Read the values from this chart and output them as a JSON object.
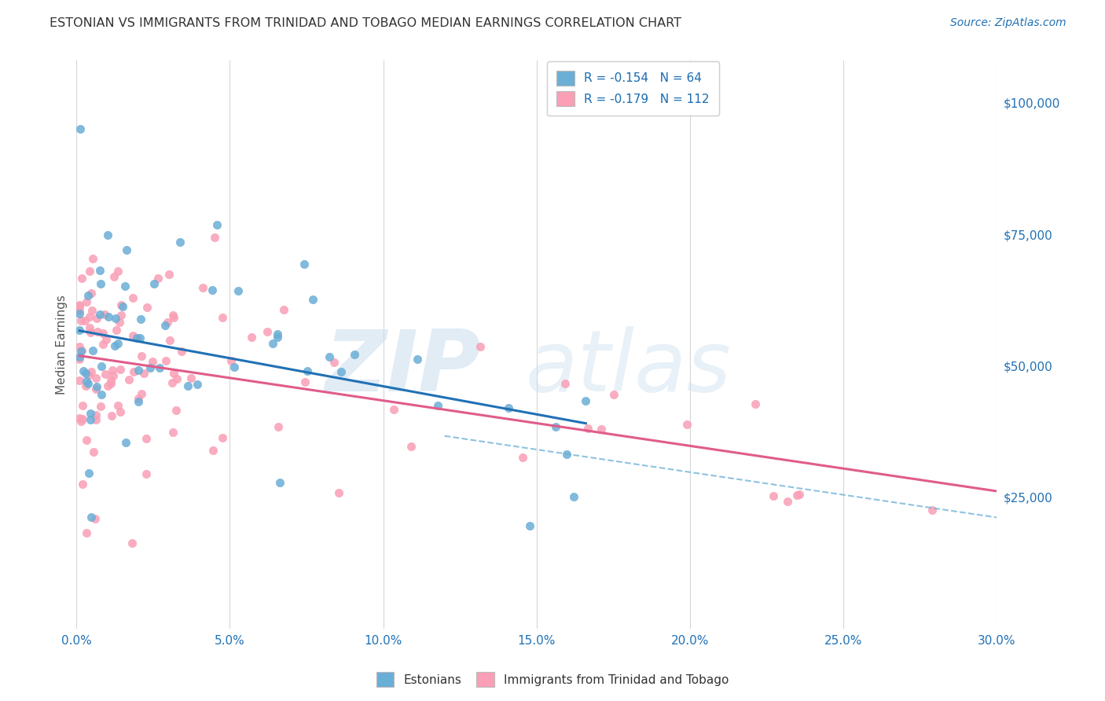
{
  "title": "ESTONIAN VS IMMIGRANTS FROM TRINIDAD AND TOBAGO MEDIAN EARNINGS CORRELATION CHART",
  "source": "Source: ZipAtlas.com",
  "ylabel": "Median Earnings",
  "y_ticks": [
    25000,
    50000,
    75000,
    100000
  ],
  "y_tick_labels": [
    "$25,000",
    "$50,000",
    "$75,000",
    "$100,000"
  ],
  "x_range": [
    0.0,
    0.3
  ],
  "y_range": [
    0,
    108000
  ],
  "blue_color": "#6baed6",
  "pink_color": "#fa9fb5",
  "blue_line_color": "#2171b5",
  "pink_line_color": "#e05c8a",
  "dashed_line_color": "#6baed6",
  "axis_label_color": "#2171b5",
  "background_color": "#ffffff",
  "seed_blue": 42,
  "seed_pink": 99,
  "n_blue": 64,
  "n_pink": 112
}
